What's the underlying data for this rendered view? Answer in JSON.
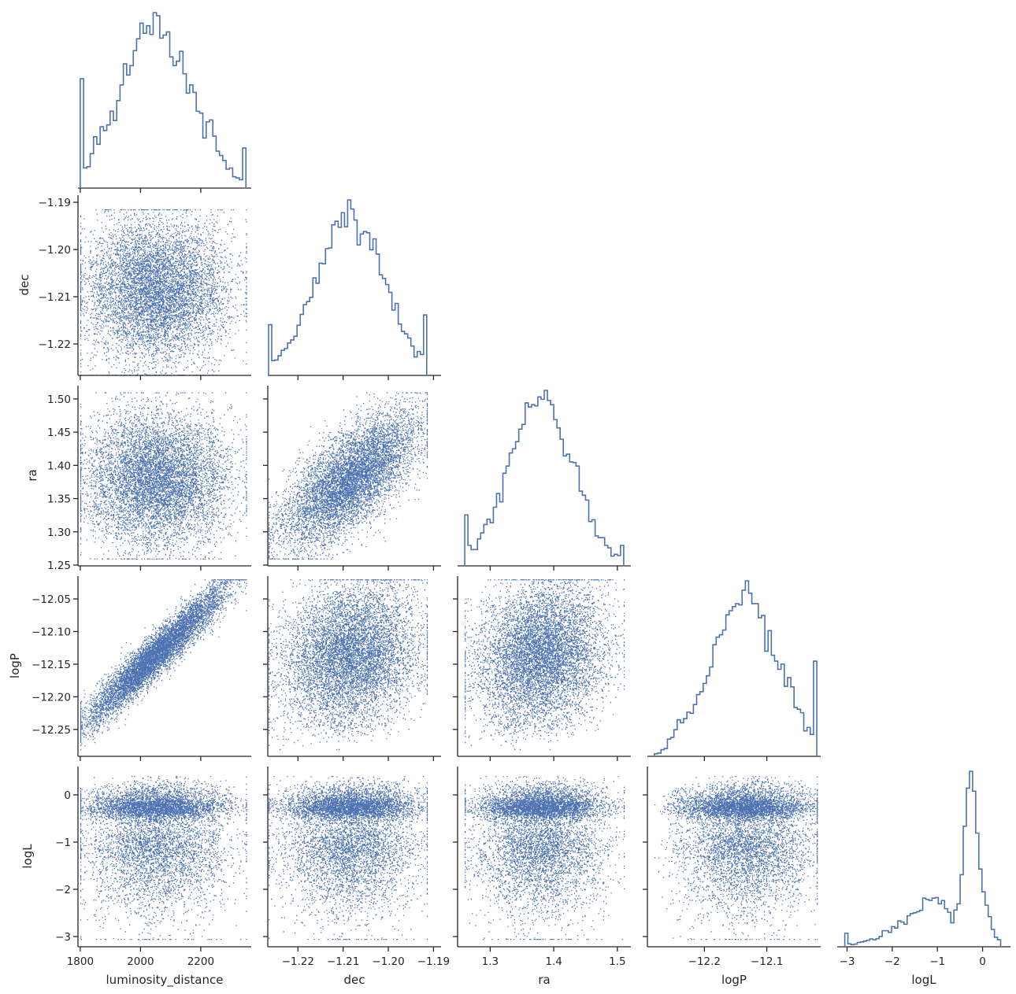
{
  "figure": {
    "type": "corner-pairplot",
    "variables": [
      "luminosity_distance",
      "dec",
      "ra",
      "logP",
      "logL"
    ],
    "colors": {
      "series": "#4c72b0",
      "axis": "#262626",
      "background": "#ffffff"
    }
  },
  "chart_data": {
    "type": "scatter",
    "title": "",
    "variables": [
      {
        "name": "luminosity_distance",
        "label": "luminosity_distance",
        "range": [
          1795,
          2365
        ],
        "ticks": [
          1800,
          2000,
          2200
        ],
        "tick_labels": [
          "1800",
          "2000",
          "2200"
        ],
        "distribution": {
          "mean": 2050,
          "sd": 120,
          "min": 1800,
          "max": 2350
        }
      },
      {
        "name": "dec",
        "label": "dec",
        "range": [
          -1.2265,
          -1.1885
        ],
        "ticks": [
          -1.22,
          -1.21,
          -1.2,
          -1.19
        ],
        "tick_labels": [
          "−1.22",
          "−1.21",
          "−1.20",
          "−1.19"
        ],
        "distribution": {
          "mean": -1.2085,
          "sd": 0.0075,
          "min": -1.2265,
          "max": -1.1915
        }
      },
      {
        "name": "ra",
        "label": "ra",
        "range": [
          1.25,
          1.52
        ],
        "ticks": [
          1.25,
          1.3,
          1.35,
          1.4,
          1.45,
          1.5
        ],
        "tick_labels": [
          "1.25",
          "1.30",
          "1.35",
          "1.40",
          "1.45",
          "1.50"
        ],
        "x_ticks": [
          1.3,
          1.4,
          1.5
        ],
        "x_tick_labels": [
          "1.3",
          "1.4",
          "1.5"
        ],
        "distribution": {
          "mean": 1.38,
          "sd": 0.05,
          "min": 1.26,
          "max": 1.51
        }
      },
      {
        "name": "logP",
        "label": "logP",
        "range": [
          -12.29,
          -12.015
        ],
        "ticks": [
          -12.25,
          -12.2,
          -12.15,
          -12.1,
          -12.05
        ],
        "tick_labels": [
          "−12.25",
          "−12.20",
          "−12.15",
          "−12.10",
          "−12.05"
        ],
        "x_ticks": [
          -12.2,
          -12.1
        ],
        "x_tick_labels": [
          "−12.2",
          "−12.1"
        ],
        "distribution": {
          "mean": -12.135,
          "sd": 0.055,
          "min": -12.28,
          "max": -12.02
        }
      },
      {
        "name": "logL",
        "label": "logL",
        "range": [
          -3.2,
          0.6
        ],
        "ticks": [
          -3,
          -2,
          -1,
          0
        ],
        "tick_labels": [
          "−3",
          "−2",
          "−1",
          "0"
        ],
        "distribution": {
          "peak": -0.2,
          "min": -3.05,
          "max": 0.4,
          "shape": "left-skewed, sharp peak near -0.2"
        }
      }
    ],
    "correlations": [
      {
        "x": "luminosity_distance",
        "y": "logP",
        "r": 0.96
      },
      {
        "x": "dec",
        "y": "ra",
        "r": 0.7
      },
      {
        "x": "dec",
        "y": "logP",
        "r": 0.2
      },
      {
        "x": "ra",
        "y": "logP",
        "r": 0.2
      }
    ],
    "n_samples": 7000,
    "diagonal": "step histogram",
    "off_diagonal": "scatter",
    "grid": false,
    "legend": "none"
  }
}
